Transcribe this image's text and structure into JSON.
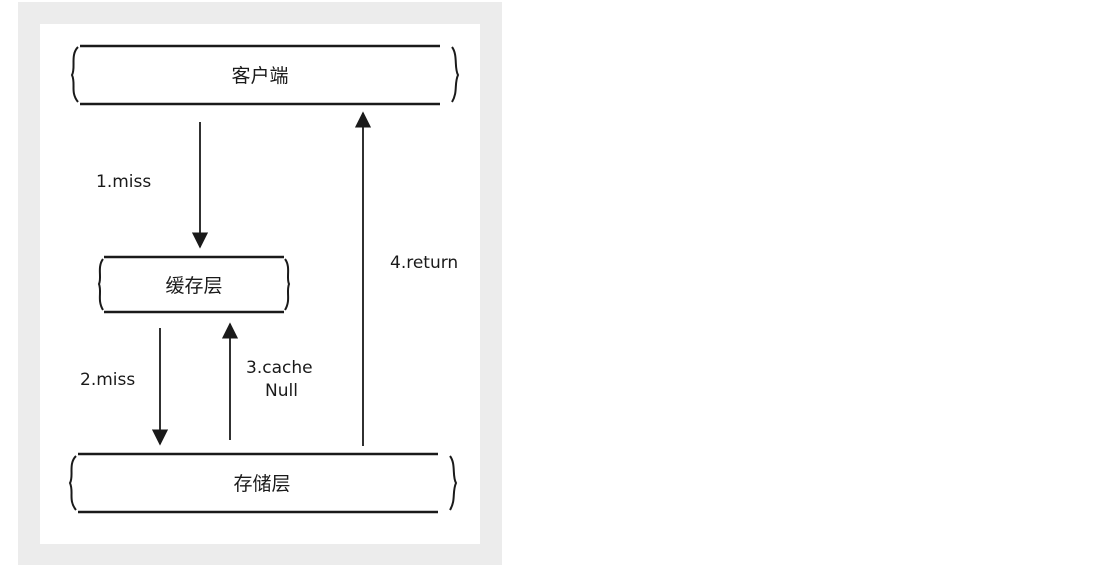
{
  "layers": {
    "client": "客户端",
    "cache": "缓存层",
    "storage": "存储层"
  },
  "edges": {
    "miss1": "1.miss",
    "miss2": "2.miss",
    "cache_null_line1": "3.cache",
    "cache_null_line2": "Null",
    "return": "4.return"
  },
  "colors": {
    "frame_bg": "#ececec",
    "canvas_bg": "#ffffff",
    "stroke": "#1a1a1a"
  }
}
